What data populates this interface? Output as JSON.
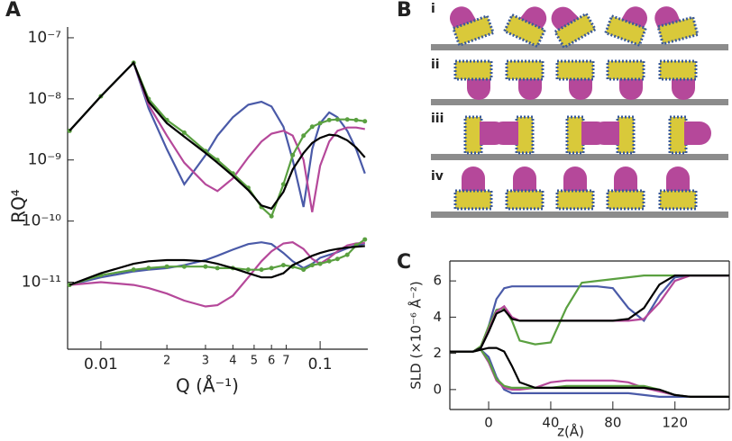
{
  "panel_labels": [
    "A",
    "B",
    "C"
  ],
  "diagram": {
    "rows": [
      "i",
      "ii",
      "iii",
      "iv"
    ]
  },
  "chart_data": [
    {
      "type": "line",
      "xscale": "log",
      "yscale": "log",
      "xlabel": "Q (Å⁻¹)",
      "ylabel": "RQ⁴",
      "xlim": [
        0.00705,
        0.165
      ],
      "ylim": [
        8e-13,
        1.5e-07
      ],
      "xticks": [
        0.01,
        {
          "value": 0.02,
          "label": "2"
        },
        {
          "value": 0.03,
          "label": "3"
        },
        {
          "value": 0.04,
          "label": "4"
        },
        {
          "value": 0.05,
          "label": "5"
        },
        {
          "value": 0.06,
          "label": "6"
        },
        {
          "value": 0.07,
          "label": "7"
        },
        0.1
      ],
      "yticks": [
        {
          "value": 1e-11,
          "label": "10⁻¹¹"
        },
        {
          "value": 1e-10,
          "label": "10⁻¹⁰"
        },
        {
          "value": 1e-09,
          "label": "10⁻⁹"
        },
        {
          "value": 1e-08,
          "label": "10⁻⁸"
        },
        {
          "value": 1e-07,
          "label": "10⁻⁷"
        }
      ],
      "x": [
        0.0072,
        0.01,
        0.0141,
        0.0165,
        0.02,
        0.024,
        0.03,
        0.034,
        0.04,
        0.047,
        0.054,
        0.06,
        0.068,
        0.075,
        0.084,
        0.092,
        0.1,
        0.11,
        0.12,
        0.133,
        0.146,
        0.16
      ],
      "series": [
        {
          "color": "#4a5aa8",
          "values": [
            3e-09,
            1.1e-08,
            3.9e-08,
            7e-09,
            1.5e-09,
            4e-10,
            1.2e-09,
            2.5e-09,
            5e-09,
            8e-09,
            9e-09,
            7.5e-09,
            3.5e-09,
            1e-09,
            1.7e-10,
            1.5e-09,
            4e-09,
            6e-09,
            5e-09,
            3e-09,
            1.5e-09,
            6e-10
          ]
        },
        {
          "color": "#b5489a",
          "values": [
            3e-09,
            1.1e-08,
            3.9e-08,
            8e-09,
            2.5e-09,
            9e-10,
            4e-10,
            3.1e-10,
            5e-10,
            1.1e-09,
            2e-09,
            2.7e-09,
            3e-09,
            2.5e-09,
            1e-09,
            1.4e-10,
            8e-10,
            2e-09,
            3e-09,
            3.4e-09,
            3.4e-09,
            3.2e-09
          ]
        },
        {
          "color": "#5aa040",
          "markers": true,
          "values": [
            3e-09,
            1.1e-08,
            3.9e-08,
            1e-08,
            4.5e-09,
            2.8e-09,
            1.4e-09,
            1e-09,
            6e-10,
            3.5e-10,
            1.7e-10,
            1.2e-10,
            4e-10,
            1.2e-09,
            2.5e-09,
            3.5e-09,
            4e-09,
            4.5e-09,
            4.6e-09,
            4.6e-09,
            4.5e-09,
            4.3e-09
          ]
        },
        {
          "color": "#000000",
          "values": [
            3e-09,
            1.1e-08,
            3.9e-08,
            9e-09,
            4e-09,
            2.4e-09,
            1.3e-09,
            9e-10,
            5.5e-10,
            3.2e-10,
            1.8e-10,
            1.6e-10,
            3e-10,
            7e-10,
            1.3e-09,
            1.9e-09,
            2.3e-09,
            2.6e-09,
            2.5e-09,
            2.1e-09,
            1.6e-09,
            1.1e-09
          ]
        },
        {
          "color": "#4a5aa8",
          "values": [
            9e-12,
            1.2e-11,
            1.5e-11,
            1.6e-11,
            1.7e-11,
            1.9e-11,
            2.3e-11,
            2.7e-11,
            3.4e-11,
            4.2e-11,
            4.5e-11,
            4.2e-11,
            3e-11,
            2.2e-11,
            1.7e-11,
            2e-11,
            2.5e-11,
            2.8e-11,
            3.1e-11,
            3.6e-11,
            4e-11,
            4.3e-11
          ]
        },
        {
          "color": "#b5489a",
          "values": [
            9e-12,
            1e-11,
            9e-12,
            8e-12,
            6.5e-12,
            5e-12,
            4e-12,
            4.2e-12,
            6e-12,
            1.2e-11,
            2.2e-11,
            3.2e-11,
            4.3e-11,
            4.5e-11,
            3.5e-11,
            2.4e-11,
            2e-11,
            2.5e-11,
            3.2e-11,
            4e-11,
            4.3e-11,
            4.4e-11
          ]
        },
        {
          "color": "#5aa040",
          "markers": true,
          "values": [
            9e-12,
            1.3e-11,
            1.6e-11,
            1.7e-11,
            1.8e-11,
            1.8e-11,
            1.8e-11,
            1.7e-11,
            1.7e-11,
            1.6e-11,
            1.6e-11,
            1.7e-11,
            1.9e-11,
            1.8e-11,
            1.6e-11,
            1.9e-11,
            2e-11,
            2.2e-11,
            2.4e-11,
            2.8e-11,
            4e-11,
            5e-11
          ]
        },
        {
          "color": "#000000",
          "values": [
            9e-12,
            1.4e-11,
            2e-11,
            2.2e-11,
            2.3e-11,
            2.3e-11,
            2.2e-11,
            2e-11,
            1.7e-11,
            1.4e-11,
            1.2e-11,
            1.2e-11,
            1.4e-11,
            1.9e-11,
            2.3e-11,
            2.7e-11,
            3e-11,
            3.3e-11,
            3.5e-11,
            3.7e-11,
            3.8e-11,
            3.9e-11
          ]
        }
      ]
    },
    {
      "type": "line",
      "xlabel": "z(Å)",
      "ylabel": "SLD (×10⁻⁶ Å⁻²)",
      "xlim": [
        -25,
        155
      ],
      "ylim": [
        -1.1,
        7.1
      ],
      "xticks": [
        0,
        40,
        80,
        120
      ],
      "yticks": [
        0,
        2,
        4,
        6
      ],
      "x": [
        -25,
        -10,
        -5,
        0,
        5,
        10,
        15,
        20,
        30,
        40,
        50,
        60,
        70,
        80,
        90,
        100,
        110,
        120,
        130,
        155
      ],
      "series": [
        {
          "color": "#4a5aa8",
          "values": [
            2.1,
            2.1,
            2.3,
            3.5,
            5,
            5.6,
            5.7,
            5.7,
            5.7,
            5.7,
            5.7,
            5.7,
            5.7,
            5.6,
            4.5,
            3.8,
            5.2,
            6.2,
            6.3,
            6.3
          ]
        },
        {
          "color": "#5aa040",
          "values": [
            2.1,
            2.1,
            2.4,
            3.5,
            4.4,
            4.5,
            3.8,
            2.7,
            2.5,
            2.6,
            4.5,
            5.9,
            6.0,
            6.1,
            6.2,
            6.3,
            6.3,
            6.3,
            6.3,
            6.3
          ]
        },
        {
          "color": "#b5489a",
          "values": [
            2.1,
            2.1,
            2.3,
            3.3,
            4.3,
            4.6,
            4.0,
            3.8,
            3.8,
            3.8,
            3.8,
            3.8,
            3.8,
            3.8,
            3.8,
            3.9,
            4.8,
            6.0,
            6.3,
            6.3
          ]
        },
        {
          "color": "#000000",
          "values": [
            2.1,
            2.1,
            2.3,
            3.2,
            4.2,
            4.4,
            3.9,
            3.8,
            3.8,
            3.8,
            3.8,
            3.8,
            3.8,
            3.8,
            3.9,
            4.5,
            5.8,
            6.3,
            6.3,
            6.3
          ]
        },
        {
          "color": "#4a5aa8",
          "values": [
            2.1,
            2.1,
            2.2,
            1.8,
            0.7,
            0,
            -0.2,
            -0.2,
            -0.2,
            -0.2,
            -0.2,
            -0.2,
            -0.2,
            -0.2,
            -0.2,
            -0.3,
            -0.4,
            -0.4,
            -0.4,
            -0.4
          ]
        },
        {
          "color": "#b5489a",
          "values": [
            2.1,
            2.1,
            2.2,
            1.5,
            0.5,
            0.1,
            0,
            0,
            0.1,
            0.4,
            0.5,
            0.5,
            0.5,
            0.5,
            0.4,
            0.1,
            -0.1,
            -0.3,
            -0.4,
            -0.4
          ]
        },
        {
          "color": "#5aa040",
          "values": [
            2.1,
            2.1,
            2.2,
            1.6,
            0.6,
            0.2,
            0.1,
            0.1,
            0.1,
            0.1,
            0.2,
            0.2,
            0.2,
            0.2,
            0.2,
            0.2,
            0.0,
            -0.3,
            -0.4,
            -0.4
          ]
        },
        {
          "color": "#000000",
          "values": [
            2.1,
            2.1,
            2.2,
            2.3,
            2.3,
            2.1,
            1.3,
            0.4,
            0.1,
            0.1,
            0.1,
            0.1,
            0.1,
            0.1,
            0.1,
            0.1,
            0,
            -0.3,
            -0.4,
            -0.4
          ]
        }
      ]
    }
  ]
}
